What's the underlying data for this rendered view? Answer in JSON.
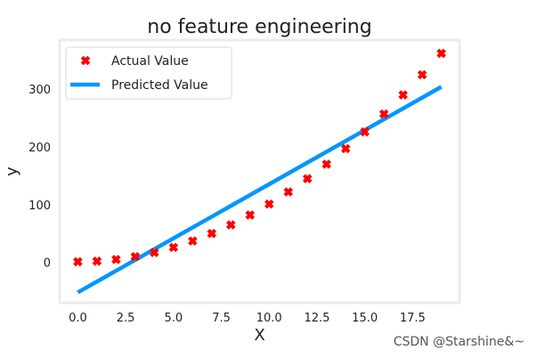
{
  "chart_data": {
    "type": "scatter",
    "title": "no feature engineering",
    "xlabel": "X",
    "ylabel": "y",
    "xlim": [
      -0.95,
      19.95
    ],
    "ylim": [
      -70,
      385
    ],
    "xticks": [
      0.0,
      2.5,
      5.0,
      7.5,
      10.0,
      12.5,
      15.0,
      17.5
    ],
    "xtick_labels": [
      "0.0",
      "2.5",
      "5.0",
      "7.5",
      "10.0",
      "12.5",
      "15.0",
      "17.5"
    ],
    "yticks": [
      0,
      100,
      200,
      300
    ],
    "ytick_labels": [
      "0",
      "100",
      "200",
      "300"
    ],
    "grid": false,
    "legend_position": "top-left",
    "series": [
      {
        "name": "Actual Value",
        "kind": "scatter",
        "marker": "x",
        "color": "#ff0000",
        "x": [
          0,
          1,
          2,
          3,
          4,
          5,
          6,
          7,
          8,
          9,
          10,
          11,
          12,
          13,
          14,
          15,
          16,
          17,
          18,
          19
        ],
        "y": [
          1,
          2,
          5,
          10,
          17,
          26,
          37,
          50,
          65,
          82,
          101,
          122,
          145,
          170,
          197,
          226,
          257,
          290,
          325,
          362
        ]
      },
      {
        "name": "Predicted Value",
        "kind": "line",
        "color": "#0096ff",
        "x": [
          0,
          19
        ],
        "y": [
          -52,
          304
        ]
      }
    ]
  },
  "watermark": "CSDN @Starshine&~"
}
